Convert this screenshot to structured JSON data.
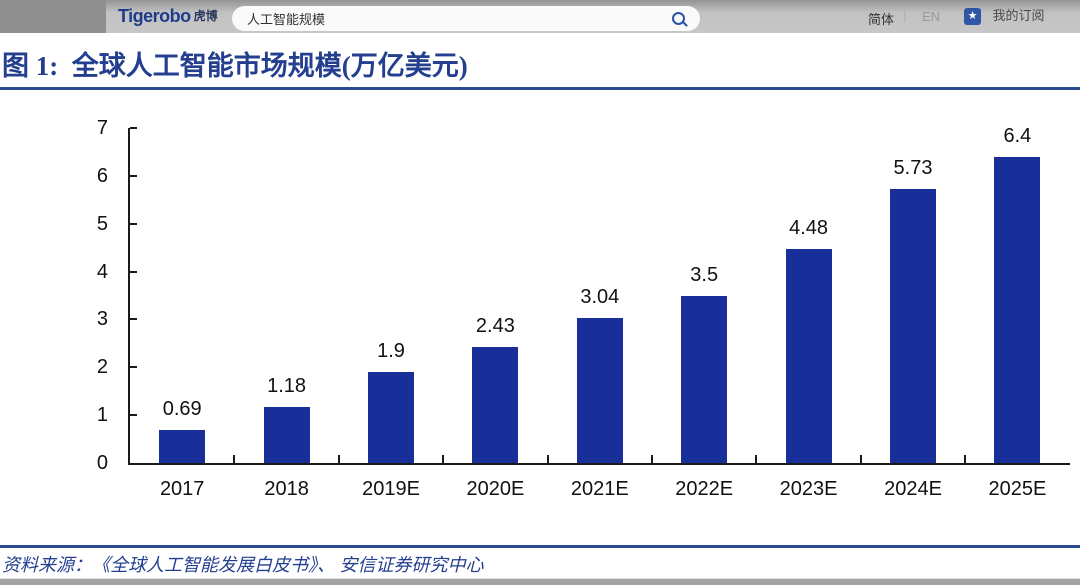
{
  "header": {
    "logo_text": "Tigerobo",
    "logo_suffix": "虎博",
    "search_value": "人工智能规模",
    "search_icon": "search-icon",
    "lang_zh": "简体",
    "divider": "|",
    "lang_en": "EN",
    "subscribe_icon": "star-icon",
    "subscribe_star": "★",
    "subscribe_label": "我的订阅"
  },
  "figure_title": "图 1:  全球人工智能市场规模(万亿美元)",
  "source_note": "资料来源：《全球人工智能发展白皮书》、 安信证券研究中心",
  "colors": {
    "bar": "#182F99",
    "navy_accent": "#243F8F",
    "logo_navy": "#1E3A8C",
    "axis_black": "#1A1A1A"
  },
  "chart_data": {
    "type": "bar",
    "title": "全球人工智能市场规模(万亿美元)",
    "categories": [
      "2017",
      "2018",
      "2019E",
      "2020E",
      "2021E",
      "2022E",
      "2023E",
      "2024E",
      "2025E"
    ],
    "values": [
      0.69,
      1.18,
      1.9,
      2.43,
      3.04,
      3.5,
      4.48,
      5.73,
      6.4
    ],
    "value_labels": [
      "0.69",
      "1.18",
      "1.9",
      "2.43",
      "3.04",
      "3.5",
      "4.48",
      "5.73",
      "6.4"
    ],
    "xlabel": "",
    "ylabel": "",
    "ylim": [
      0,
      7
    ],
    "yticks": [
      0,
      1,
      2,
      3,
      4,
      5,
      6,
      7
    ],
    "grid": false,
    "legend": null,
    "bar_color": "#182F99"
  }
}
